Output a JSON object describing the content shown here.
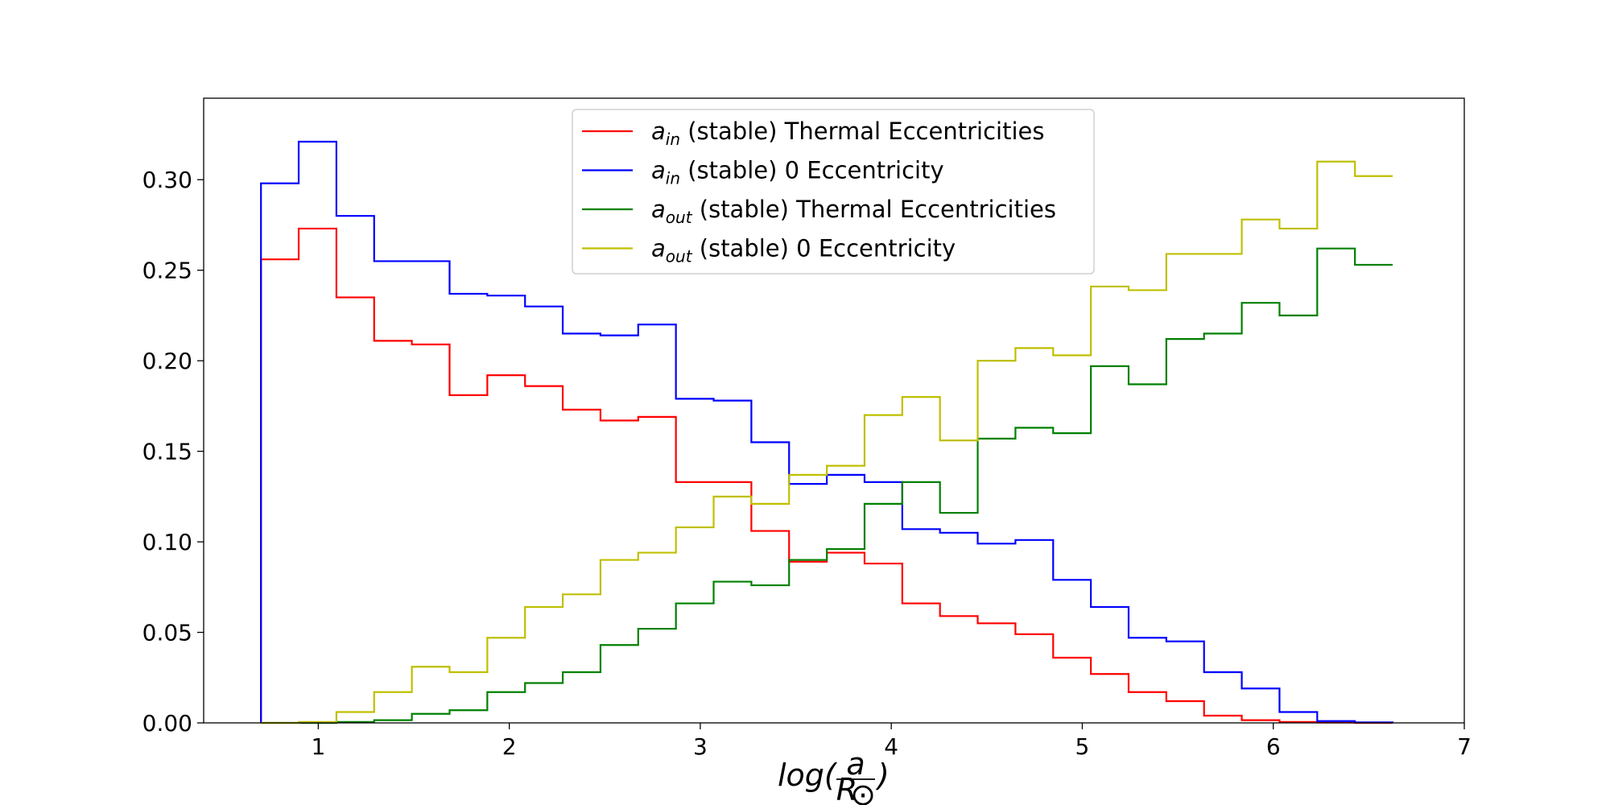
{
  "chart_data": {
    "type": "histogram-step",
    "title": "",
    "xlabel": {
      "prefix": "log(",
      "numerator": "a",
      "denominator": "R",
      "denominator_sub": "⊙",
      "suffix": ")"
    },
    "ylabel": "",
    "xlim": [
      0.4,
      7.0
    ],
    "ylim": [
      0.0,
      0.345
    ],
    "xticks": [
      1,
      2,
      3,
      4,
      5,
      6,
      7
    ],
    "yticks": [
      0.0,
      0.05,
      0.1,
      0.15,
      0.2,
      0.25,
      0.3
    ],
    "ytick_labels": [
      "0.00",
      "0.05",
      "0.10",
      "0.15",
      "0.20",
      "0.25",
      "0.30"
    ],
    "grid": false,
    "legend_position": "top-center",
    "bin_edges": [
      0.7,
      0.8975,
      1.095,
      1.2925,
      1.49,
      1.6875,
      1.885,
      2.0825,
      2.28,
      2.4775,
      2.675,
      2.8725,
      3.07,
      3.2675,
      3.465,
      3.6625,
      3.86,
      4.0575,
      4.255,
      4.4525,
      4.65,
      4.8475,
      5.045,
      5.2425,
      5.44,
      5.6375,
      5.835,
      6.0325,
      6.23,
      6.4275,
      6.625
    ],
    "series": [
      {
        "name_main": "a",
        "name_sub": "in",
        "name_rest": " (stable) Thermal Eccentricities",
        "color": "#ff0000",
        "values": [
          0.256,
          0.273,
          0.235,
          0.211,
          0.209,
          0.181,
          0.192,
          0.186,
          0.173,
          0.167,
          0.169,
          0.133,
          0.133,
          0.106,
          0.089,
          0.094,
          0.088,
          0.066,
          0.059,
          0.055,
          0.049,
          0.036,
          0.027,
          0.017,
          0.012,
          0.004,
          0.0015,
          0.0005,
          0.0002,
          0.0,
          0.0
        ]
      },
      {
        "name_main": "a",
        "name_sub": "in",
        "name_rest": " (stable) 0 Eccentricity",
        "color": "#0000ff",
        "values": [
          0.298,
          0.321,
          0.28,
          0.255,
          0.255,
          0.237,
          0.236,
          0.23,
          0.215,
          0.214,
          0.22,
          0.179,
          0.178,
          0.155,
          0.132,
          0.137,
          0.133,
          0.107,
          0.105,
          0.099,
          0.101,
          0.079,
          0.064,
          0.047,
          0.045,
          0.028,
          0.019,
          0.006,
          0.001,
          0.0003,
          0.0
        ]
      },
      {
        "name_main": "a",
        "name_sub": "out",
        "name_rest": " (stable) Thermal Eccentricities",
        "color": "#008000",
        "values": [
          0.0,
          0.0,
          0.0005,
          0.0015,
          0.005,
          0.007,
          0.017,
          0.022,
          0.028,
          0.043,
          0.052,
          0.066,
          0.078,
          0.076,
          0.09,
          0.096,
          0.121,
          0.133,
          0.116,
          0.157,
          0.163,
          0.16,
          0.197,
          0.187,
          0.212,
          0.215,
          0.232,
          0.225,
          0.262,
          0.253,
          0.253
        ]
      },
      {
        "name_main": "a",
        "name_sub": "out",
        "name_rest": " (stable) 0 Eccentricity",
        "color": "#bfbf00",
        "values": [
          0.0,
          0.0005,
          0.006,
          0.017,
          0.031,
          0.028,
          0.047,
          0.064,
          0.071,
          0.09,
          0.094,
          0.108,
          0.125,
          0.121,
          0.137,
          0.142,
          0.17,
          0.18,
          0.156,
          0.2,
          0.207,
          0.203,
          0.241,
          0.239,
          0.259,
          0.259,
          0.278,
          0.273,
          0.31,
          0.302,
          0.302
        ]
      }
    ]
  }
}
